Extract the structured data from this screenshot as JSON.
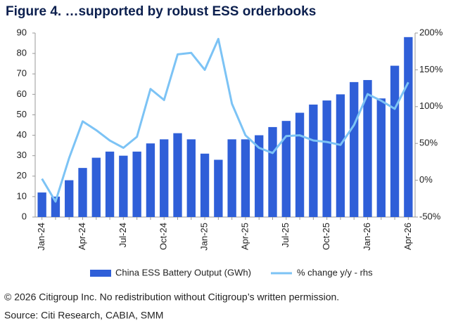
{
  "chart_data": {
    "type": "bar-line",
    "title": "Figure 4. …supported by robust ESS orderbooks",
    "categories": [
      "Jan-24",
      null,
      null,
      "Apr-24",
      null,
      null,
      "Jul-24",
      null,
      null,
      "Oct-24",
      null,
      null,
      "Jan-25",
      null,
      null,
      "Apr-25",
      null,
      null,
      "Jul-25",
      null,
      null,
      "Oct-25",
      null,
      null,
      "Jan-26",
      null,
      null,
      "Apr-26"
    ],
    "series": [
      {
        "name": "China ESS Battery Output (GWh)",
        "color": "#2f5fd8",
        "values": [
          12,
          10,
          18,
          24,
          29,
          32,
          30,
          32,
          36,
          38,
          41,
          38,
          31,
          28,
          38,
          38,
          40,
          44,
          47,
          51,
          55,
          57,
          60,
          66,
          67,
          58,
          74,
          88
        ]
      },
      {
        "name": "% change y/y - rhs",
        "color": "#7cc3f5",
        "axis": "y2",
        "values": [
          2,
          -29,
          30,
          80,
          68,
          54,
          44,
          59,
          124,
          109,
          171,
          173,
          150,
          192,
          104,
          61,
          44,
          37,
          60,
          61,
          54,
          52,
          48,
          75,
          117,
          108,
          97,
          133
        ]
      }
    ],
    "ylim": [
      0,
      90
    ],
    "yticks": [
      0,
      10,
      20,
      30,
      40,
      50,
      60,
      70,
      80,
      90
    ],
    "y2lim": [
      -50,
      200
    ],
    "y2ticks": [
      {
        "value": -50,
        "label": "-50%"
      },
      {
        "value": 0,
        "label": "0%"
      },
      {
        "value": 50,
        "label": "50%"
      },
      {
        "value": 100,
        "label": "100%"
      },
      {
        "value": 150,
        "label": "150%"
      },
      {
        "value": 200,
        "label": "200%"
      }
    ],
    "footnote": "© 2026 Citigroup Inc. No redistribution without Citigroup’s written permission.",
    "source": "Source: Citi Research, CABIA, SMM"
  }
}
